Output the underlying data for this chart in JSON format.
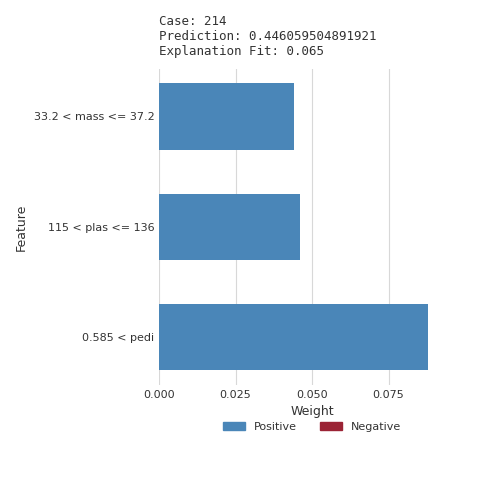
{
  "title_lines": [
    "Case: 214",
    "Prediction: 0.446059504891921",
    "Explanation Fit: 0.065"
  ],
  "features": [
    "33.2 < mass <= 37.2",
    "115 < plas <= 136",
    "0.585 < pedi"
  ],
  "weights": [
    0.044,
    0.046,
    0.088
  ],
  "bar_color_positive": "#4a86b8",
  "bar_color_negative": "#9b2335",
  "xlabel": "Weight",
  "ylabel": "Feature",
  "xlim": [
    0,
    0.1
  ],
  "xticks": [
    0.0,
    0.025,
    0.05,
    0.075
  ],
  "xtick_labels": [
    "0.000",
    "0.025",
    "0.050",
    "0.075"
  ],
  "title_fontsize": 9,
  "axis_fontsize": 9,
  "tick_fontsize": 8,
  "label_fontsize": 8,
  "title_color": "#333333",
  "label_color_default": "#333333",
  "label_color_orange": "#c8600a",
  "label_colors": [
    "#333333",
    "#c8600a",
    "#333333"
  ],
  "background_color": "#ffffff",
  "grid_color": "#d8d8d8"
}
